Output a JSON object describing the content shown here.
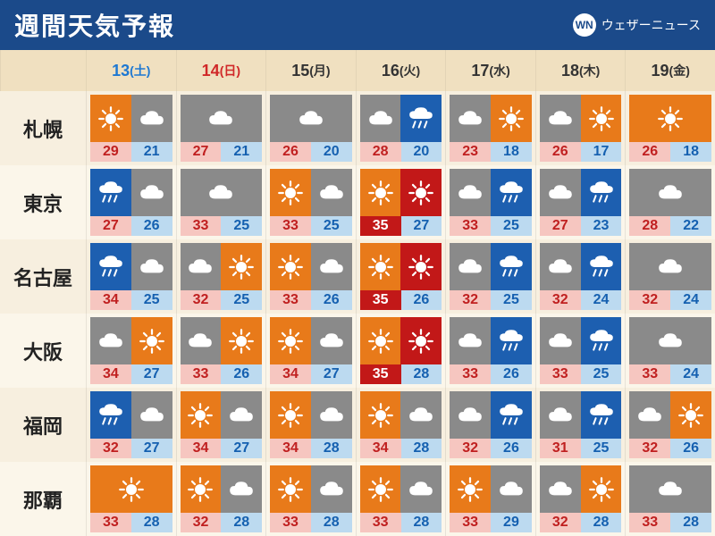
{
  "header": {
    "title": "週間天気予報",
    "brand": "ウェザーニュース",
    "brand_logo": "WN"
  },
  "colors": {
    "header_bg": "#1b4a8a",
    "days_bg": "#f0e0c0",
    "day_sat": "#1e78d2",
    "day_sun": "#d02828",
    "day_wk": "#333333",
    "hi_normal_bg": "#f6c6c0",
    "hi_normal_fg": "#c02020",
    "hi_hot_bg": "#c21818",
    "hi_hot_fg": "#ffffff",
    "lo_bg": "#bcdaf0",
    "lo_fg": "#1560b0",
    "bg_sunny": "#e87a1a",
    "bg_cloudy": "#8a8a8a",
    "bg_rain": "#1d5fb0",
    "bg_heat": "#c21818",
    "icon_white": "#ffffff"
  },
  "days": [
    {
      "num": "13",
      "dow": "(土)",
      "type": "sat"
    },
    {
      "num": "14",
      "dow": "(日)",
      "type": "sun"
    },
    {
      "num": "15",
      "dow": "(月)",
      "type": "wk"
    },
    {
      "num": "16",
      "dow": "(火)",
      "type": "wk"
    },
    {
      "num": "17",
      "dow": "(水)",
      "type": "wk"
    },
    {
      "num": "18",
      "dow": "(木)",
      "type": "wk"
    },
    {
      "num": "19",
      "dow": "(金)",
      "type": "wk"
    }
  ],
  "cities": [
    {
      "name": "札幌",
      "cells": [
        {
          "icons": [
            {
              "bg": "sunny",
              "sym": "sun"
            },
            {
              "bg": "cloudy",
              "sym": "cloud"
            }
          ],
          "hi": 29,
          "lo": 21,
          "heat": false
        },
        {
          "icons": [
            {
              "bg": "cloudy",
              "sym": "cloud"
            }
          ],
          "hi": 27,
          "lo": 21,
          "heat": false
        },
        {
          "icons": [
            {
              "bg": "cloudy",
              "sym": "cloud"
            }
          ],
          "hi": 26,
          "lo": 20,
          "heat": false
        },
        {
          "icons": [
            {
              "bg": "cloudy",
              "sym": "cloud"
            },
            {
              "bg": "rain",
              "sym": "rain"
            }
          ],
          "hi": 28,
          "lo": 20,
          "heat": false
        },
        {
          "icons": [
            {
              "bg": "cloudy",
              "sym": "cloud"
            },
            {
              "bg": "sunny",
              "sym": "sun"
            }
          ],
          "hi": 23,
          "lo": 18,
          "heat": false
        },
        {
          "icons": [
            {
              "bg": "cloudy",
              "sym": "cloud"
            },
            {
              "bg": "sunny",
              "sym": "sun"
            }
          ],
          "hi": 26,
          "lo": 17,
          "heat": false
        },
        {
          "icons": [
            {
              "bg": "sunny",
              "sym": "sun"
            }
          ],
          "hi": 26,
          "lo": 18,
          "heat": false
        }
      ]
    },
    {
      "name": "東京",
      "cells": [
        {
          "icons": [
            {
              "bg": "rain",
              "sym": "rain"
            },
            {
              "bg": "cloudy",
              "sym": "cloud"
            }
          ],
          "hi": 27,
          "lo": 26,
          "heat": false
        },
        {
          "icons": [
            {
              "bg": "cloudy",
              "sym": "cloud"
            }
          ],
          "hi": 33,
          "lo": 25,
          "heat": false
        },
        {
          "icons": [
            {
              "bg": "sunny",
              "sym": "sun"
            },
            {
              "bg": "cloudy",
              "sym": "cloud"
            }
          ],
          "hi": 33,
          "lo": 25,
          "heat": false
        },
        {
          "icons": [
            {
              "bg": "sunny",
              "sym": "sun"
            },
            {
              "bg": "heat",
              "sym": "sun"
            }
          ],
          "hi": 35,
          "lo": 27,
          "heat": true
        },
        {
          "icons": [
            {
              "bg": "cloudy",
              "sym": "cloud"
            },
            {
              "bg": "rain",
              "sym": "rain"
            }
          ],
          "hi": 33,
          "lo": 25,
          "heat": false
        },
        {
          "icons": [
            {
              "bg": "cloudy",
              "sym": "cloud"
            },
            {
              "bg": "rain",
              "sym": "rain"
            }
          ],
          "hi": 27,
          "lo": 23,
          "heat": false
        },
        {
          "icons": [
            {
              "bg": "cloudy",
              "sym": "cloud"
            }
          ],
          "hi": 28,
          "lo": 22,
          "heat": false
        }
      ]
    },
    {
      "name": "名古屋",
      "cells": [
        {
          "icons": [
            {
              "bg": "rain",
              "sym": "rain"
            },
            {
              "bg": "cloudy",
              "sym": "cloud"
            }
          ],
          "hi": 34,
          "lo": 25,
          "heat": false
        },
        {
          "icons": [
            {
              "bg": "cloudy",
              "sym": "cloud"
            },
            {
              "bg": "sunny",
              "sym": "sun"
            }
          ],
          "hi": 32,
          "lo": 25,
          "heat": false
        },
        {
          "icons": [
            {
              "bg": "sunny",
              "sym": "sun"
            },
            {
              "bg": "cloudy",
              "sym": "cloud"
            }
          ],
          "hi": 33,
          "lo": 26,
          "heat": false
        },
        {
          "icons": [
            {
              "bg": "sunny",
              "sym": "sun"
            },
            {
              "bg": "heat",
              "sym": "sun"
            }
          ],
          "hi": 35,
          "lo": 26,
          "heat": true
        },
        {
          "icons": [
            {
              "bg": "cloudy",
              "sym": "cloud"
            },
            {
              "bg": "rain",
              "sym": "rain"
            }
          ],
          "hi": 32,
          "lo": 25,
          "heat": false
        },
        {
          "icons": [
            {
              "bg": "cloudy",
              "sym": "cloud"
            },
            {
              "bg": "rain",
              "sym": "rain"
            }
          ],
          "hi": 32,
          "lo": 24,
          "heat": false
        },
        {
          "icons": [
            {
              "bg": "cloudy",
              "sym": "cloud"
            }
          ],
          "hi": 32,
          "lo": 24,
          "heat": false
        }
      ]
    },
    {
      "name": "大阪",
      "cells": [
        {
          "icons": [
            {
              "bg": "cloudy",
              "sym": "cloud"
            },
            {
              "bg": "sunny",
              "sym": "sun"
            }
          ],
          "hi": 34,
          "lo": 27,
          "heat": false
        },
        {
          "icons": [
            {
              "bg": "cloudy",
              "sym": "cloud"
            },
            {
              "bg": "sunny",
              "sym": "sun"
            }
          ],
          "hi": 33,
          "lo": 26,
          "heat": false
        },
        {
          "icons": [
            {
              "bg": "sunny",
              "sym": "sun"
            },
            {
              "bg": "cloudy",
              "sym": "cloud"
            }
          ],
          "hi": 34,
          "lo": 27,
          "heat": false
        },
        {
          "icons": [
            {
              "bg": "sunny",
              "sym": "sun"
            },
            {
              "bg": "heat",
              "sym": "sun"
            }
          ],
          "hi": 35,
          "lo": 28,
          "heat": true
        },
        {
          "icons": [
            {
              "bg": "cloudy",
              "sym": "cloud"
            },
            {
              "bg": "rain",
              "sym": "rain"
            }
          ],
          "hi": 33,
          "lo": 26,
          "heat": false
        },
        {
          "icons": [
            {
              "bg": "cloudy",
              "sym": "cloud"
            },
            {
              "bg": "rain",
              "sym": "rain"
            }
          ],
          "hi": 33,
          "lo": 25,
          "heat": false
        },
        {
          "icons": [
            {
              "bg": "cloudy",
              "sym": "cloud"
            }
          ],
          "hi": 33,
          "lo": 24,
          "heat": false
        }
      ]
    },
    {
      "name": "福岡",
      "cells": [
        {
          "icons": [
            {
              "bg": "rain",
              "sym": "rain"
            },
            {
              "bg": "cloudy",
              "sym": "cloud"
            }
          ],
          "hi": 32,
          "lo": 27,
          "heat": false
        },
        {
          "icons": [
            {
              "bg": "sunny",
              "sym": "sun"
            },
            {
              "bg": "cloudy",
              "sym": "cloud"
            }
          ],
          "hi": 34,
          "lo": 27,
          "heat": false
        },
        {
          "icons": [
            {
              "bg": "sunny",
              "sym": "sun"
            },
            {
              "bg": "cloudy",
              "sym": "cloud"
            }
          ],
          "hi": 34,
          "lo": 28,
          "heat": false
        },
        {
          "icons": [
            {
              "bg": "sunny",
              "sym": "sun"
            },
            {
              "bg": "cloudy",
              "sym": "cloud"
            }
          ],
          "hi": 34,
          "lo": 28,
          "heat": false
        },
        {
          "icons": [
            {
              "bg": "cloudy",
              "sym": "cloud"
            },
            {
              "bg": "rain",
              "sym": "rain"
            }
          ],
          "hi": 32,
          "lo": 26,
          "heat": false
        },
        {
          "icons": [
            {
              "bg": "cloudy",
              "sym": "cloud"
            },
            {
              "bg": "rain",
              "sym": "rain"
            }
          ],
          "hi": 31,
          "lo": 25,
          "heat": false
        },
        {
          "icons": [
            {
              "bg": "cloudy",
              "sym": "cloud"
            },
            {
              "bg": "sunny",
              "sym": "sun"
            }
          ],
          "hi": 32,
          "lo": 26,
          "heat": false
        }
      ]
    },
    {
      "name": "那覇",
      "cells": [
        {
          "icons": [
            {
              "bg": "sunny",
              "sym": "sun"
            }
          ],
          "hi": 33,
          "lo": 28,
          "heat": false
        },
        {
          "icons": [
            {
              "bg": "sunny",
              "sym": "sun"
            },
            {
              "bg": "cloudy",
              "sym": "cloud"
            }
          ],
          "hi": 32,
          "lo": 28,
          "heat": false
        },
        {
          "icons": [
            {
              "bg": "sunny",
              "sym": "sun"
            },
            {
              "bg": "cloudy",
              "sym": "cloud"
            }
          ],
          "hi": 33,
          "lo": 28,
          "heat": false
        },
        {
          "icons": [
            {
              "bg": "sunny",
              "sym": "sun"
            },
            {
              "bg": "cloudy",
              "sym": "cloud"
            }
          ],
          "hi": 33,
          "lo": 28,
          "heat": false
        },
        {
          "icons": [
            {
              "bg": "sunny",
              "sym": "sun"
            },
            {
              "bg": "cloudy",
              "sym": "cloud"
            }
          ],
          "hi": 33,
          "lo": 29,
          "heat": false
        },
        {
          "icons": [
            {
              "bg": "cloudy",
              "sym": "cloud"
            },
            {
              "bg": "sunny",
              "sym": "sun"
            }
          ],
          "hi": 32,
          "lo": 28,
          "heat": false
        },
        {
          "icons": [
            {
              "bg": "cloudy",
              "sym": "cloud"
            }
          ],
          "hi": 33,
          "lo": 28,
          "heat": false
        }
      ]
    }
  ]
}
